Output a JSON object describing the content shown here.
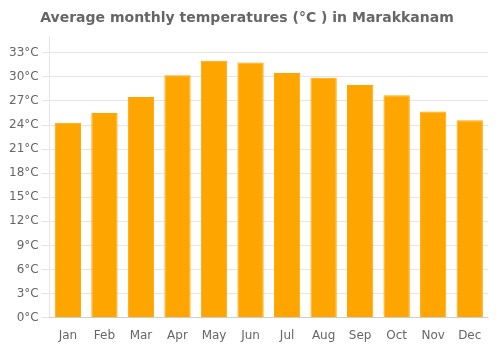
{
  "chart_data": {
    "type": "bar",
    "title": "Average monthly temperatures (°C ) in Marakkanam",
    "categories": [
      "Jan",
      "Feb",
      "Mar",
      "Apr",
      "May",
      "Jun",
      "Jul",
      "Aug",
      "Sep",
      "Oct",
      "Nov",
      "Dec"
    ],
    "values": [
      24.3,
      25.5,
      27.5,
      30.2,
      32.0,
      31.8,
      30.5,
      29.9,
      29.0,
      27.7,
      25.7,
      24.6
    ],
    "color": "#FFA500",
    "ylim": [
      0,
      35
    ],
    "yticks": [
      {
        "value": 0,
        "label": "0°C"
      },
      {
        "value": 3,
        "label": "3°C"
      },
      {
        "value": 6,
        "label": "6°C"
      },
      {
        "value": 9,
        "label": "9°C"
      },
      {
        "value": 12,
        "label": "12°C"
      },
      {
        "value": 15,
        "label": "15°C"
      },
      {
        "value": 18,
        "label": "18°C"
      },
      {
        "value": 21,
        "label": "21°C"
      },
      {
        "value": 24,
        "label": "24°C"
      },
      {
        "value": 27,
        "label": "27°C"
      },
      {
        "value": 30,
        "label": "30°C"
      },
      {
        "value": 33,
        "label": "33°C"
      }
    ],
    "grid": true
  }
}
